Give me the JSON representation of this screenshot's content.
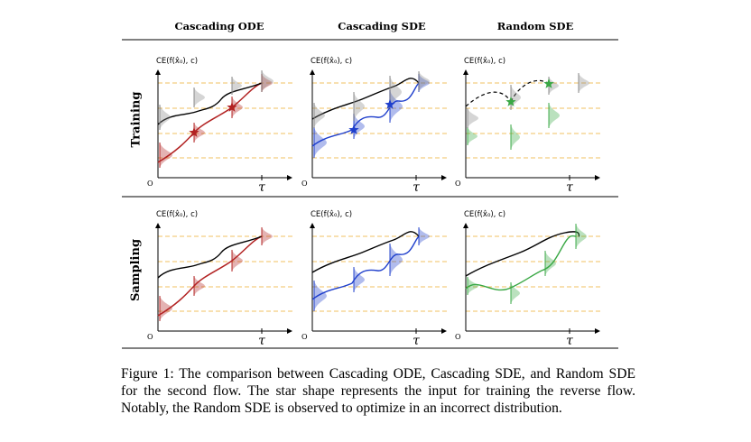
{
  "columns": [
    "Cascading ODE",
    "Cascading SDE",
    "Random SDE"
  ],
  "rows": [
    "Training",
    "Sampling"
  ],
  "axis": {
    "y_label": "CE(f(x̂₀), c)",
    "x_label": "τ",
    "origin": "O"
  },
  "colors": {
    "ode": "#b22222",
    "sde": "#1f3fcc",
    "random": "#3aa845",
    "guide": "#f0c060",
    "black": "#000000"
  },
  "caption": "Figure 1: The comparison between Cascading ODE, Cascading SDE, and Random SDE for the second flow. The star shape represents the input for training the reverse flow. Notably, the Random SDE is observed to optimize in an incorrect distribution."
}
